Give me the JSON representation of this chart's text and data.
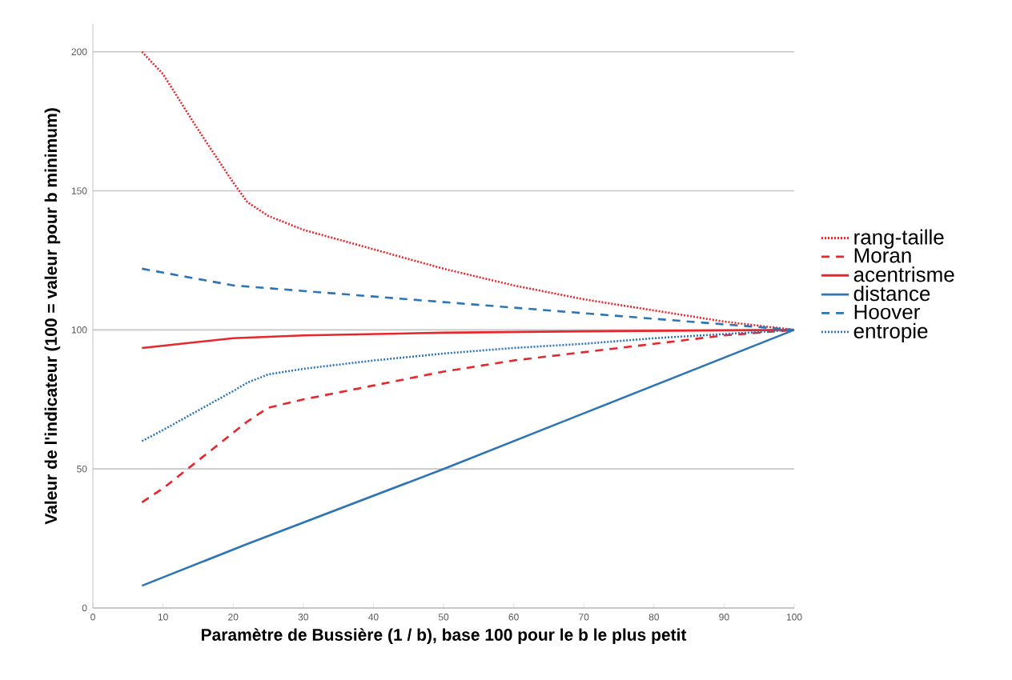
{
  "chart_data": {
    "type": "line",
    "xlabel": "Paramètre de Bussière (1 / b), base 100 pour le b le plus petit",
    "ylabel": "Valeur de l'indicateur (100 = valeur pour b minimum)",
    "xlim": [
      0,
      100
    ],
    "xticks": [
      0,
      10,
      20,
      30,
      40,
      50,
      60,
      70,
      80,
      90,
      100
    ],
    "ylim": [
      0,
      210
    ],
    "yticks": [
      0,
      50,
      100,
      150,
      200
    ],
    "grid": "y",
    "legend": "right",
    "marker": "none",
    "series": [
      {
        "name": "rang-taille",
        "color": "#e8262b",
        "line_style": "dotted",
        "x": [
          7,
          10,
          15,
          20,
          22,
          25,
          30,
          40,
          50,
          60,
          70,
          80,
          90,
          100
        ],
        "values": [
          200,
          192,
          172,
          153,
          146,
          141,
          136,
          129,
          122,
          116,
          111,
          107,
          103,
          100
        ]
      },
      {
        "name": "Moran",
        "color": "#e8262b",
        "line_style": "dashed",
        "x": [
          7,
          10,
          15,
          20,
          22,
          25,
          30,
          40,
          50,
          60,
          70,
          80,
          90,
          100
        ],
        "values": [
          38,
          43,
          53,
          63,
          67,
          72,
          75,
          80,
          85,
          89,
          92,
          95,
          98,
          100
        ]
      },
      {
        "name": "acentrisme",
        "color": "#e8262b",
        "line_style": "solid",
        "x": [
          7,
          20,
          30,
          50,
          70,
          100
        ],
        "values": [
          93.5,
          97,
          98,
          99,
          99.5,
          100
        ]
      },
      {
        "name": "distance",
        "color": "#2e75b6",
        "line_style": "solid",
        "x": [
          7,
          22,
          50,
          70,
          100
        ],
        "values": [
          8,
          23,
          50,
          70,
          100
        ]
      },
      {
        "name": "Hoover",
        "color": "#2e75b6",
        "line_style": "dashed",
        "x": [
          7,
          20,
          30,
          40,
          50,
          60,
          70,
          80,
          90,
          100
        ],
        "values": [
          122,
          116,
          114,
          112,
          110,
          108,
          106,
          104,
          102,
          100
        ]
      },
      {
        "name": "entropie",
        "color": "#2e75b6",
        "line_style": "dotted",
        "x": [
          7,
          10,
          15,
          20,
          22,
          25,
          30,
          40,
          50,
          60,
          70,
          80,
          90,
          100
        ],
        "values": [
          60,
          64,
          71,
          78,
          81,
          84,
          86,
          89,
          91.5,
          93.5,
          95,
          97,
          98.5,
          100
        ]
      }
    ]
  }
}
